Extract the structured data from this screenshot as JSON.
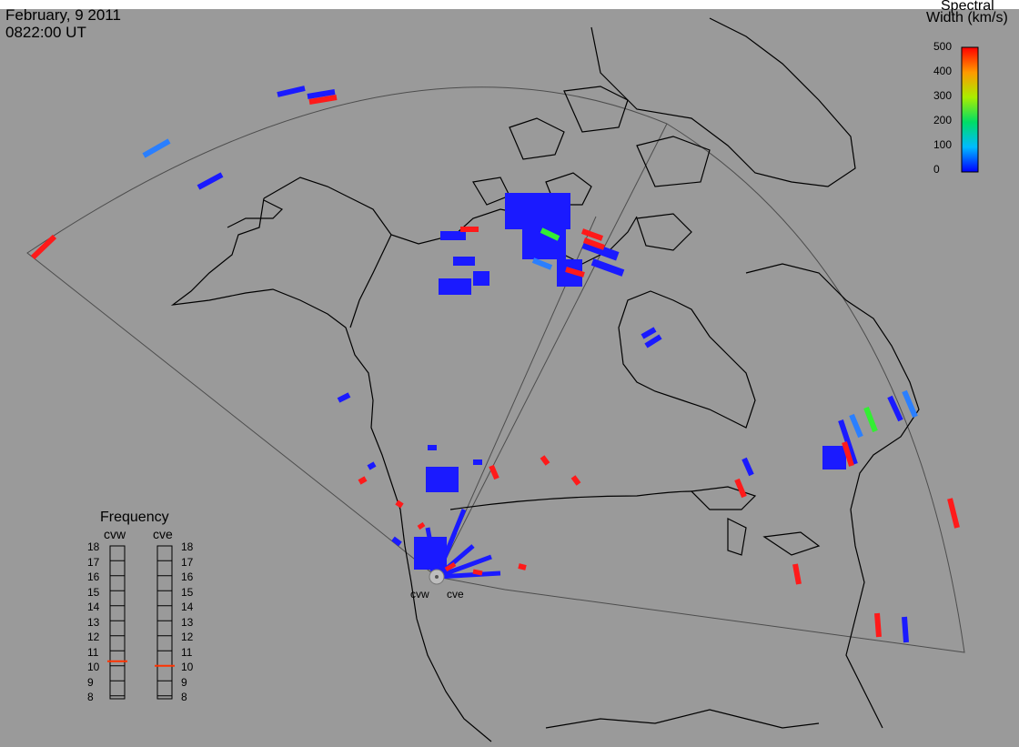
{
  "header": {
    "date": "February, 9 2011",
    "time": "0822:00 UT"
  },
  "colorbar": {
    "title_line1": "Spectral",
    "title_line2": "Width (km/s)",
    "ticks": [
      "500",
      "400",
      "300",
      "200",
      "100",
      "0"
    ],
    "colors": [
      "#ff0000",
      "#ff8800",
      "#ffee00",
      "#33dd22",
      "#00dddd",
      "#0033ff"
    ]
  },
  "frequency_panel": {
    "title": "Frequency",
    "radars": [
      "cvw",
      "cve"
    ],
    "scale": [
      "18",
      "17",
      "16",
      "15",
      "14",
      "13",
      "12",
      "11",
      "10",
      "9",
      "8"
    ],
    "cvw_value": 10.8,
    "cve_value": 10.5,
    "marker_color": "#ff3300"
  },
  "sites": {
    "left": "cvw",
    "right": "cve"
  },
  "colors": {
    "background": "#9a9a9a",
    "coast": "#000000",
    "fov": "#555555",
    "blue": "#1a1aff",
    "red": "#ff1a1a",
    "green": "#33ee33",
    "lightblue": "#2a7fff"
  }
}
